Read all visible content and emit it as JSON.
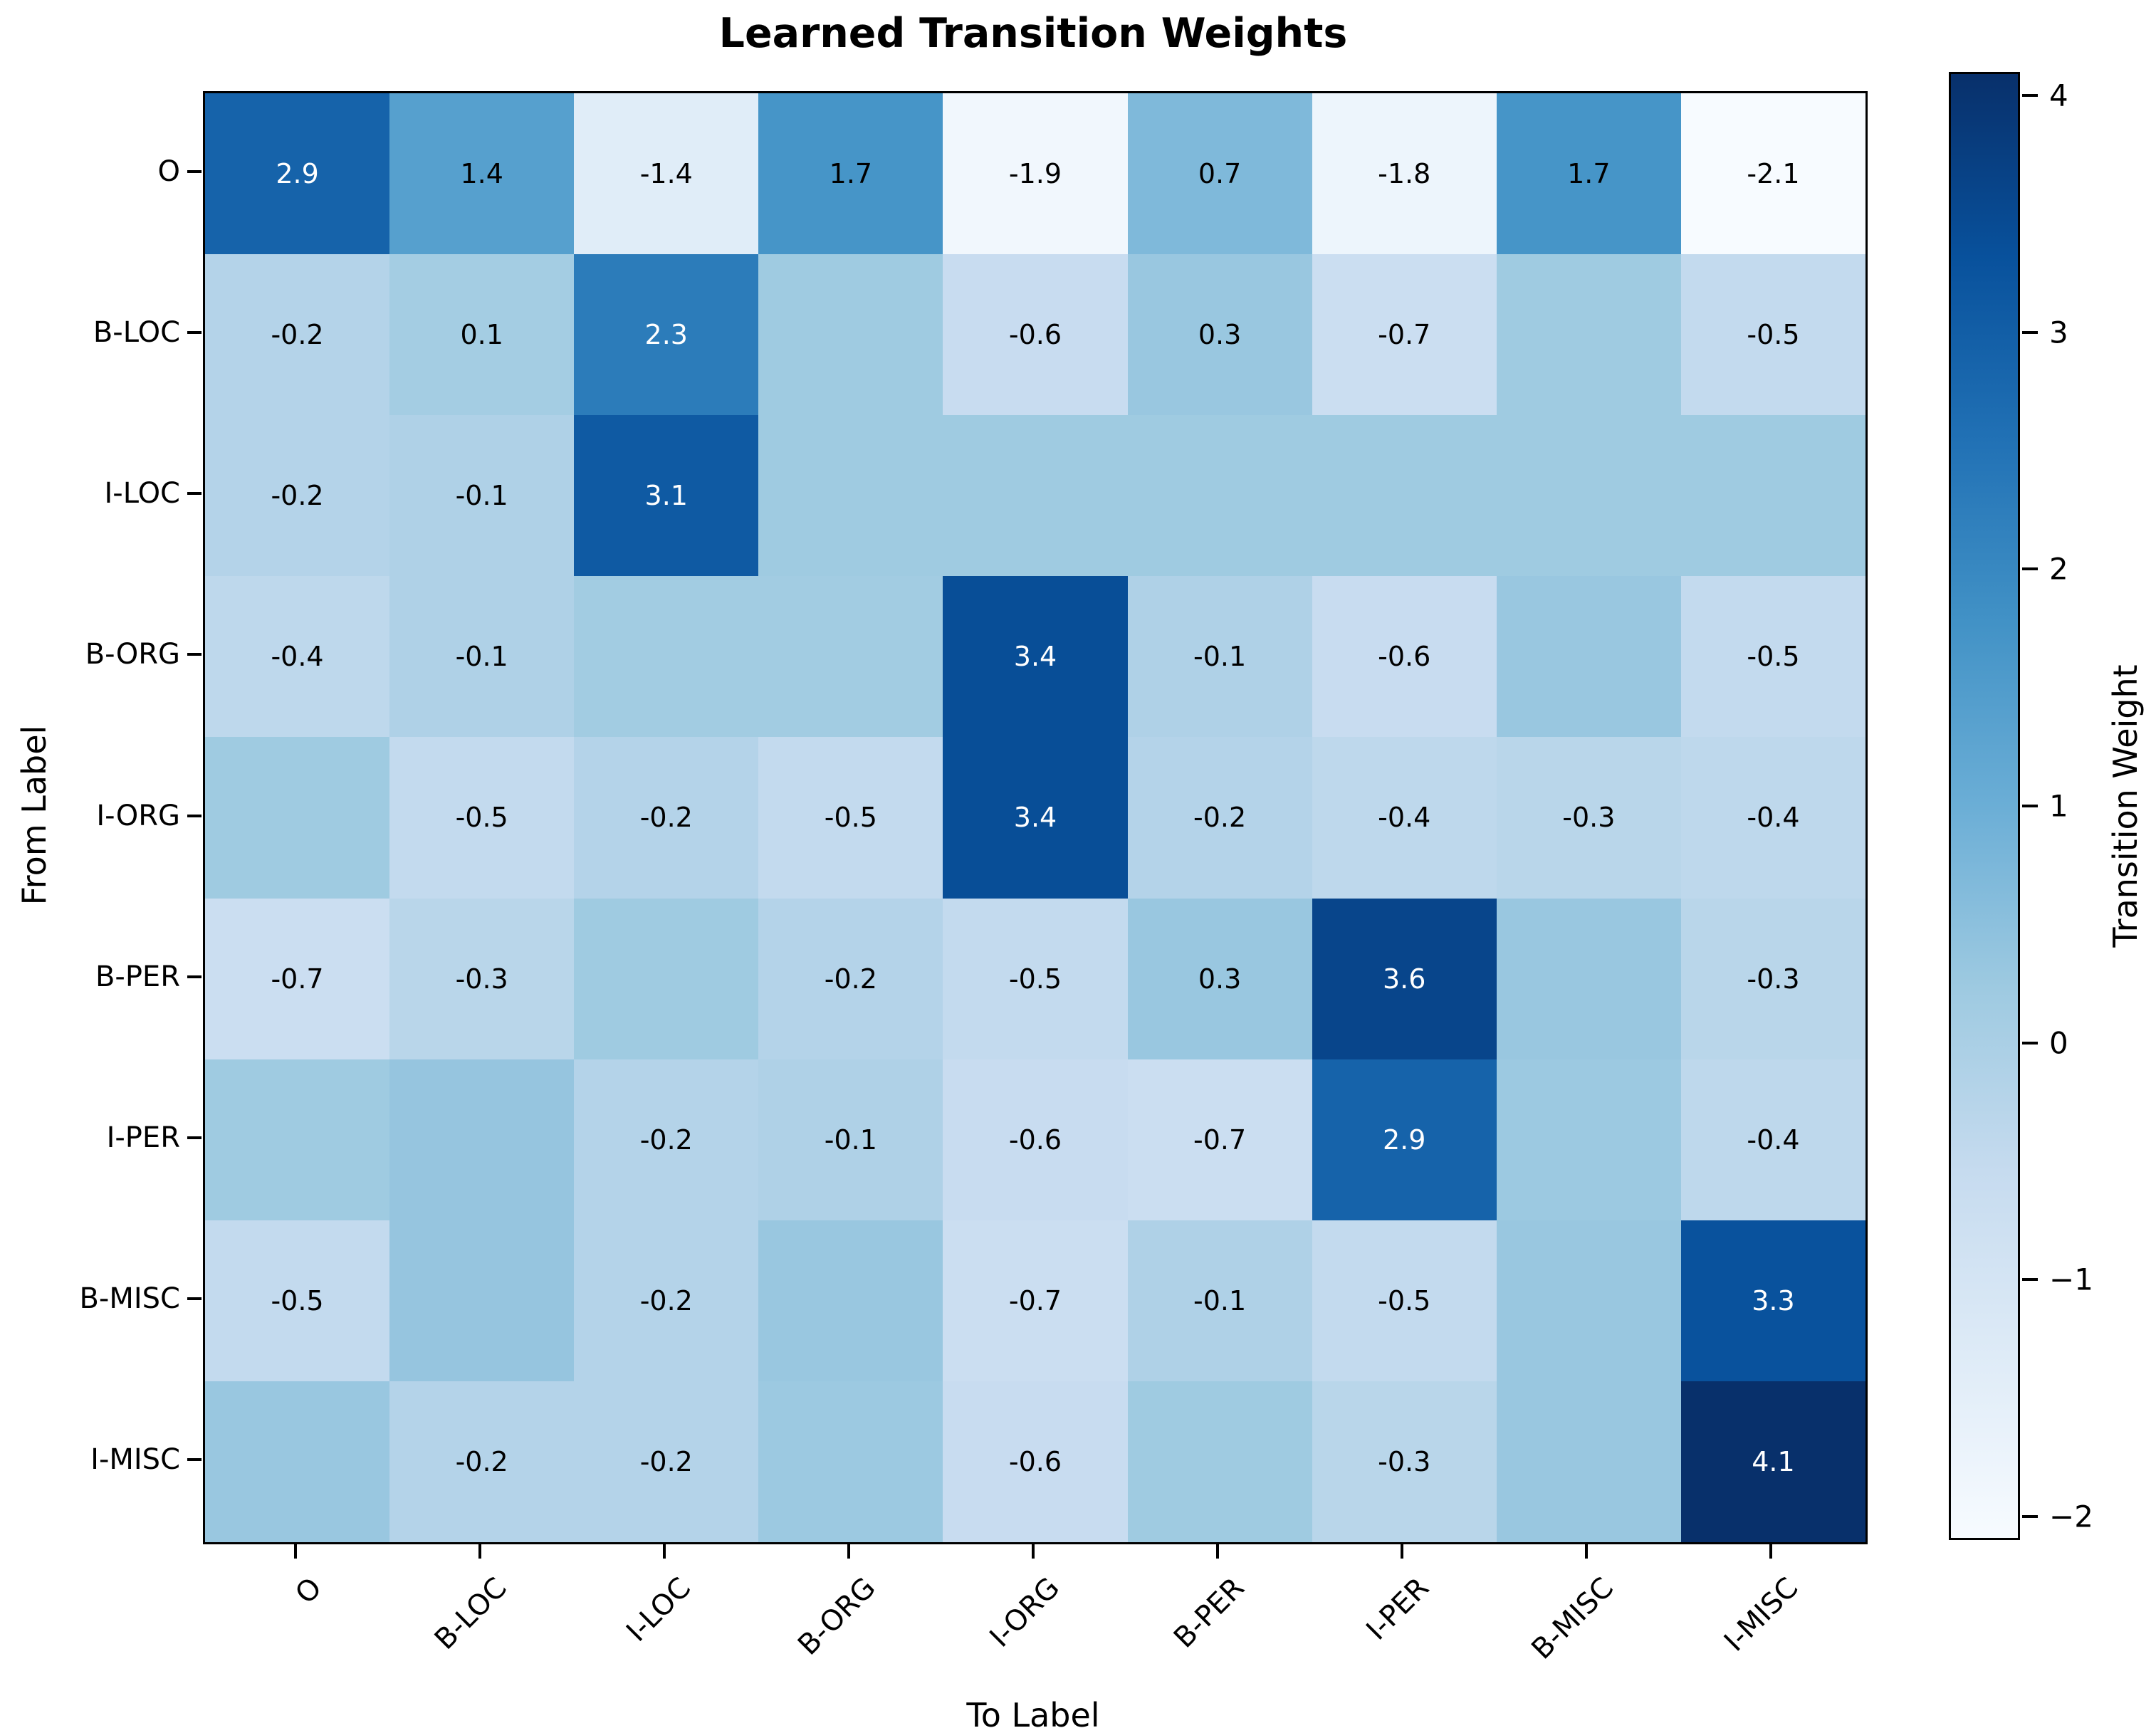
{
  "figure": {
    "title": "Learned Transition Weights"
  },
  "chart_data": {
    "type": "heatmap",
    "title": "Learned Transition Weights",
    "xlabel": "To Label",
    "ylabel": "From Label",
    "x_categories": [
      "O",
      "B-LOC",
      "I-LOC",
      "B-ORG",
      "I-ORG",
      "B-PER",
      "I-PER",
      "B-MISC",
      "I-MISC"
    ],
    "y_categories": [
      "O",
      "B-LOC",
      "I-LOC",
      "B-ORG",
      "I-ORG",
      "B-PER",
      "I-PER",
      "B-MISC",
      "I-MISC"
    ],
    "values": [
      [
        2.9,
        1.4,
        -1.4,
        1.7,
        -1.9,
        0.7,
        -1.8,
        1.7,
        -2.1
      ],
      [
        -0.2,
        0.1,
        2.3,
        0.2,
        -0.6,
        0.3,
        -0.7,
        0.2,
        -0.5
      ],
      [
        -0.2,
        -0.1,
        3.1,
        0.2,
        0.2,
        0.2,
        0.2,
        0.2,
        0.2
      ],
      [
        -0.4,
        -0.1,
        0.15,
        0.15,
        3.4,
        -0.1,
        -0.6,
        0.3,
        -0.5
      ],
      [
        0.2,
        -0.5,
        -0.2,
        -0.5,
        3.4,
        -0.2,
        -0.4,
        -0.3,
        -0.4
      ],
      [
        -0.7,
        -0.3,
        0.2,
        -0.2,
        -0.5,
        0.3,
        3.6,
        0.3,
        -0.3
      ],
      [
        0.2,
        0.35,
        -0.2,
        -0.1,
        -0.6,
        -0.7,
        2.9,
        0.25,
        -0.4
      ],
      [
        -0.5,
        0.35,
        -0.2,
        0.3,
        -0.7,
        -0.1,
        -0.5,
        0.3,
        3.3
      ],
      [
        0.3,
        -0.2,
        -0.2,
        0.25,
        -0.6,
        0.2,
        -0.3,
        0.3,
        4.1
      ]
    ],
    "cell_labels": [
      [
        "2.9",
        "1.4",
        "-1.4",
        "1.7",
        "-1.9",
        "0.7",
        "-1.8",
        "1.7",
        "-2.1"
      ],
      [
        "-0.2",
        "0.1",
        "2.3",
        "",
        "-0.6",
        "0.3",
        "-0.7",
        "",
        "-0.5"
      ],
      [
        "-0.2",
        "-0.1",
        "3.1",
        "",
        "",
        "",
        "",
        "",
        ""
      ],
      [
        "-0.4",
        "-0.1",
        "",
        "",
        "3.4",
        "-0.1",
        "-0.6",
        "",
        "-0.5"
      ],
      [
        "",
        "-0.5",
        "-0.2",
        "-0.5",
        "3.4",
        "-0.2",
        "-0.4",
        "-0.3",
        "-0.4"
      ],
      [
        "-0.7",
        "-0.3",
        "",
        "-0.2",
        "-0.5",
        "0.3",
        "3.6",
        "",
        "-0.3"
      ],
      [
        "",
        "",
        "-0.2",
        "-0.1",
        "-0.6",
        "-0.7",
        "2.9",
        "",
        "-0.4"
      ],
      [
        "-0.5",
        "",
        "-0.2",
        "",
        "-0.7",
        "-0.1",
        "-0.5",
        "",
        "3.3"
      ],
      [
        "",
        "-0.2",
        "-0.2",
        "",
        "-0.6",
        "",
        "-0.3",
        "",
        "4.1"
      ]
    ],
    "colormap": "Blues",
    "colormap_stops": [
      [
        0.0,
        "#f7fbff"
      ],
      [
        0.125,
        "#deebf7"
      ],
      [
        0.25,
        "#c6dbef"
      ],
      [
        0.375,
        "#9ecae1"
      ],
      [
        0.5,
        "#6baed6"
      ],
      [
        0.625,
        "#4292c6"
      ],
      [
        0.75,
        "#2171b5"
      ],
      [
        0.875,
        "#08519c"
      ],
      [
        1.0,
        "#08306b"
      ]
    ],
    "vmin": -2.1,
    "vmax": 4.1,
    "white_text_threshold": 2.0,
    "text_color_dark": "#000000",
    "text_color_light": "#ffffff",
    "grid": false,
    "colorbar": {
      "label": "Transition Weight",
      "ticks": [
        "4",
        "3",
        "2",
        "1",
        "0",
        "−1",
        "−2"
      ],
      "tick_values": [
        4,
        3,
        2,
        1,
        0,
        -1,
        -2
      ]
    }
  }
}
